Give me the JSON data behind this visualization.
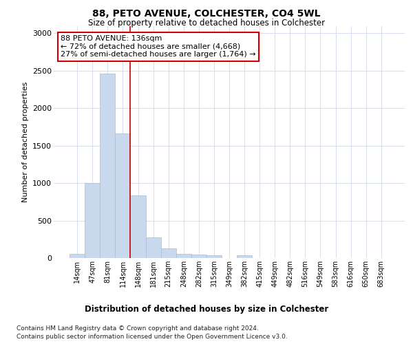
{
  "title1": "88, PETO AVENUE, COLCHESTER, CO4 5WL",
  "title2": "Size of property relative to detached houses in Colchester",
  "xlabel": "Distribution of detached houses by size in Colchester",
  "ylabel": "Number of detached properties",
  "categories": [
    "14sqm",
    "47sqm",
    "81sqm",
    "114sqm",
    "148sqm",
    "181sqm",
    "215sqm",
    "248sqm",
    "282sqm",
    "315sqm",
    "349sqm",
    "382sqm",
    "415sqm",
    "449sqm",
    "482sqm",
    "516sqm",
    "549sqm",
    "583sqm",
    "616sqm",
    "650sqm",
    "683sqm"
  ],
  "values": [
    55,
    1000,
    2460,
    1660,
    840,
    275,
    130,
    55,
    45,
    35,
    0,
    35,
    0,
    0,
    0,
    0,
    0,
    0,
    0,
    0,
    0
  ],
  "bar_color": "#c8d8ed",
  "bar_edge_color": "#aabbd4",
  "vline_color": "#cc0000",
  "vline_x": 3.5,
  "annotation_line1": "88 PETO AVENUE: 136sqm",
  "annotation_line2": "← 72% of detached houses are smaller (4,668)",
  "annotation_line3": "27% of semi-detached houses are larger (1,764) →",
  "annotation_box_color": "#ffffff",
  "annotation_box_edge": "#cc0000",
  "ylim": [
    0,
    3100
  ],
  "yticks": [
    0,
    500,
    1000,
    1500,
    2000,
    2500,
    3000
  ],
  "footnote1": "Contains HM Land Registry data © Crown copyright and database right 2024.",
  "footnote2": "Contains public sector information licensed under the Open Government Licence v3.0.",
  "bg_color": "#ffffff",
  "grid_color": "#d0d8ea"
}
